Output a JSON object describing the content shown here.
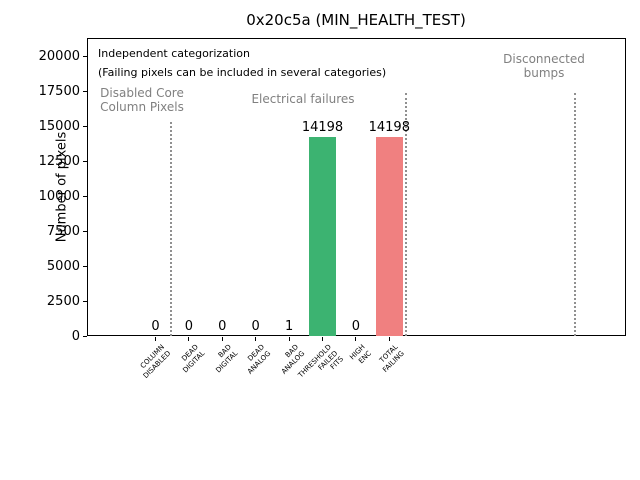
{
  "accent_colors": {
    "bar_green": "#3cb371",
    "bar_red": "#f08080",
    "annotation_gray": "#808080",
    "separator_gray": "#909090"
  },
  "chart_data": {
    "type": "bar",
    "title": "0x20c5a (MIN_HEALTH_TEST)",
    "xlabel": "",
    "ylabel": "Number of pixels",
    "ylim": [
      0,
      21300
    ],
    "yticks": [
      0,
      2500,
      5000,
      7500,
      10000,
      12500,
      15000,
      17500,
      20000
    ],
    "grid": false,
    "legend": null,
    "categories": [
      "COLUMN\nDISABLED",
      "DEAD\nDIGITAL",
      "BAD\nDIGITAL",
      "DEAD\nANALOG",
      "BAD\nANALOG",
      "THRESHOLD\nFAILED\nFITS",
      "HIGH\nENC",
      "TOTAL\nFAILING"
    ],
    "values": [
      0,
      0,
      0,
      0,
      1,
      14198,
      0,
      14198
    ],
    "value_labels": [
      "0",
      "0",
      "0",
      "0",
      "1",
      "14198",
      "0",
      "14198"
    ],
    "bar_colors": [
      "#3cb371",
      "#3cb371",
      "#3cb371",
      "#3cb371",
      "#3cb371",
      "#3cb371",
      "#3cb371",
      "#f08080"
    ],
    "annotations": [
      {
        "id": "independent-categorization-note",
        "text": "Independent categorization",
        "x": 98,
        "y": 47,
        "color": "#000000",
        "size": 11,
        "align": "left"
      },
      {
        "id": "categorization-subnote",
        "text": "(Failing pixels can be included in several categories)",
        "x": 98,
        "y": 66,
        "color": "#000000",
        "size": 11,
        "align": "left"
      },
      {
        "id": "region-label-disabled-core",
        "text": "Disabled Core\nColumn Pixels",
        "x": 142,
        "y": 86,
        "color": "#808080",
        "size": 12,
        "align": "center"
      },
      {
        "id": "region-label-electrical-failures",
        "text": "Electrical failures",
        "x": 303,
        "y": 92,
        "color": "#808080",
        "size": 12,
        "align": "center"
      },
      {
        "id": "region-label-disconnected-bumps",
        "text": "Disconnected\nbumps",
        "x": 544,
        "y": 52,
        "color": "#808080",
        "size": 12,
        "align": "center"
      }
    ],
    "region_separators": [
      {
        "x": 171,
        "y_top": 122
      },
      {
        "x": 406,
        "y_top": 93
      },
      {
        "x": 575,
        "y_top": 93
      }
    ]
  }
}
